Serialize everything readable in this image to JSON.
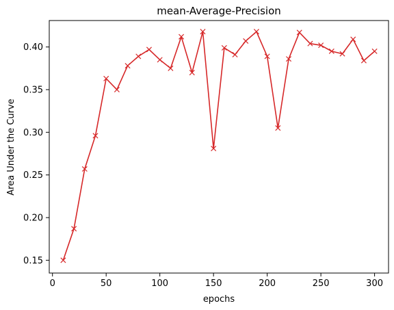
{
  "chart_data": {
    "type": "line",
    "title": "mean-Average-Precision",
    "xlabel": "epochs",
    "ylabel": "Area Under the Curve",
    "xlim": [
      -3,
      313
    ],
    "ylim": [
      0.135,
      0.431
    ],
    "xticks": [
      0,
      50,
      100,
      150,
      200,
      250,
      300
    ],
    "yticks": [
      0.15,
      0.2,
      0.25,
      0.3,
      0.35,
      0.4
    ],
    "grid": false,
    "marker": "x",
    "color": "#d62728",
    "series": [
      {
        "x": [
          10,
          20,
          30,
          40,
          50,
          60,
          70,
          80,
          90,
          100,
          110,
          120,
          130,
          140,
          150,
          160,
          170,
          180,
          190,
          200,
          210,
          220,
          230,
          240,
          250,
          260,
          270,
          280,
          290,
          300
        ],
        "values": [
          0.15,
          0.187,
          0.257,
          0.296,
          0.363,
          0.35,
          0.378,
          0.389,
          0.397,
          0.385,
          0.375,
          0.412,
          0.37,
          0.418,
          0.281,
          0.399,
          0.391,
          0.407,
          0.418,
          0.389,
          0.305,
          0.386,
          0.417,
          0.404,
          0.402,
          0.395,
          0.392,
          0.409,
          0.384,
          0.395
        ]
      }
    ]
  }
}
